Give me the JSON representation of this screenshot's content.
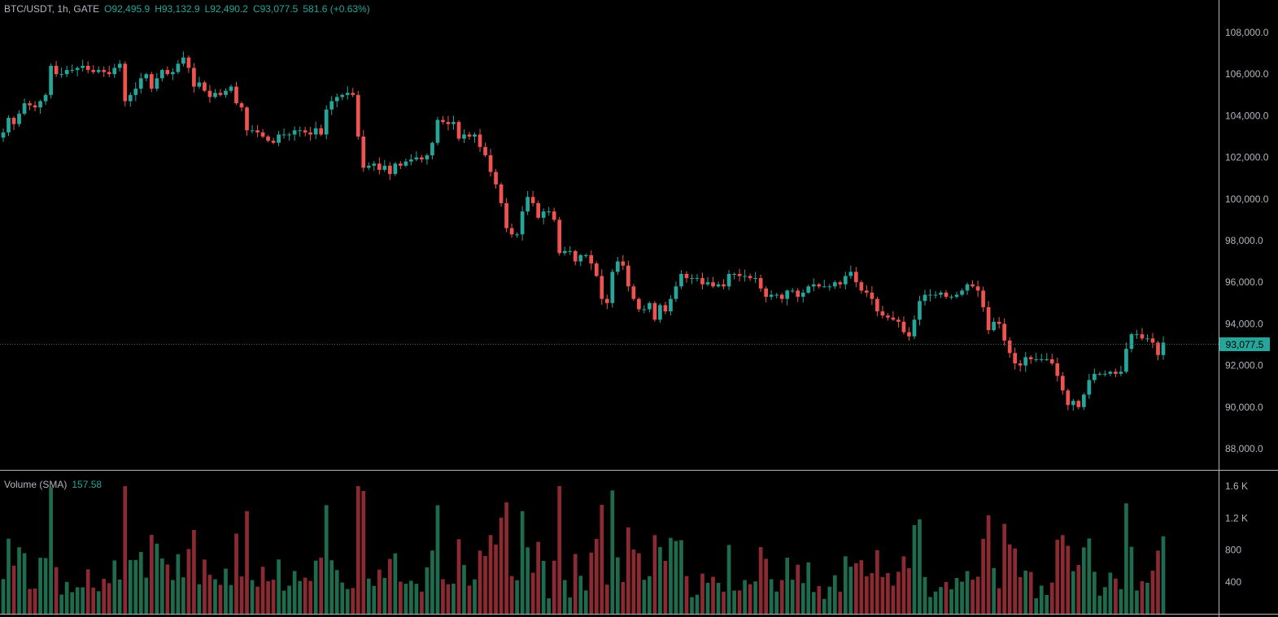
{
  "legend": {
    "symbol": "BTC/USDT, 1h, GATE",
    "open": "O92,495.9",
    "high": "H93,132.9",
    "low": "L92,490.2",
    "close": "C93,077.5",
    "change": "581.6 (+0.63%)"
  },
  "volume_legend": {
    "label": "Volume (SMA)",
    "value": "157.58"
  },
  "last_price_tag": "93,077.5",
  "colors": {
    "up": "#26a69a",
    "down": "#ef5350",
    "vol_up": "#1f6b4e",
    "vol_down": "#8c2a32",
    "axis_line": "#b2b5be"
  },
  "chart_data": [
    {
      "type": "candlestick",
      "title": "",
      "ylim": [
        87000,
        109500
      ],
      "y_ticks": [
        "108,000.0",
        "106,000.0",
        "104,000.0",
        "102,000.0",
        "100,000.0",
        "98,000.0",
        "96,000.0",
        "94,000.0",
        "92,000.0",
        "90,000.0",
        "88,000.0"
      ],
      "y_tick_values": [
        108000,
        106000,
        104000,
        102000,
        100000,
        98000,
        96000,
        94000,
        92000,
        90000,
        88000
      ],
      "last_price": 93077.5,
      "closes": [
        103200,
        103900,
        103600,
        104100,
        104600,
        104500,
        104400,
        104700,
        105000,
        106400,
        106000,
        106000,
        106200,
        106200,
        106300,
        106400,
        106200,
        106100,
        106200,
        106100,
        106000,
        106300,
        106500,
        104700,
        105000,
        105300,
        105800,
        106000,
        105300,
        105800,
        106200,
        106000,
        106100,
        106500,
        106800,
        106300,
        105400,
        105600,
        105200,
        104900,
        105100,
        105000,
        105200,
        105400,
        104600,
        104400,
        103300,
        103300,
        103200,
        103000,
        102800,
        102700,
        103100,
        103100,
        103100,
        103300,
        103300,
        103200,
        103100,
        103400,
        103100,
        104300,
        104700,
        104900,
        105000,
        105100,
        105000,
        103000,
        101500,
        101600,
        101700,
        101400,
        101600,
        101200,
        101700,
        101600,
        101800,
        101900,
        102000,
        101900,
        102100,
        102700,
        103800,
        103700,
        103600,
        103700,
        102900,
        103100,
        103000,
        103100,
        102500,
        102100,
        101300,
        100700,
        99800,
        98600,
        98300,
        98300,
        99400,
        100100,
        99800,
        99100,
        99400,
        99400,
        99000,
        97400,
        97500,
        97500,
        97000,
        97300,
        97300,
        96900,
        96300,
        95200,
        95000,
        96500,
        97000,
        96800,
        95800,
        95200,
        94700,
        94700,
        95000,
        94200,
        94900,
        94600,
        95200,
        95800,
        96400,
        96200,
        96200,
        96200,
        95900,
        96000,
        95800,
        95900,
        95800,
        96400,
        96400,
        96300,
        96300,
        96200,
        96200,
        95700,
        95300,
        95400,
        95400,
        95200,
        95600,
        95600,
        95300,
        95500,
        95800,
        95900,
        95800,
        95800,
        95800,
        96000,
        95900,
        96300,
        96500,
        96000,
        95600,
        95500,
        95200,
        94600,
        94400,
        94300,
        94200,
        94100,
        93600,
        93400,
        94200,
        95100,
        95400,
        95400,
        95400,
        95500,
        95300,
        95300,
        95400,
        95600,
        95900,
        95800,
        95600,
        94800,
        93700,
        94100,
        94000,
        93200,
        92600,
        92100,
        92000,
        92400,
        92300,
        92300,
        92300,
        92300,
        92100,
        91500,
        90800,
        90100,
        90300,
        90000,
        90600,
        91300,
        91600,
        91600,
        91600,
        91700,
        91600,
        91700,
        92800,
        93500,
        93500,
        93300,
        93300,
        93100,
        92500,
        93100
      ],
      "volume_ticks": [
        "1.6 K",
        "1.2 K",
        "800",
        "400"
      ],
      "volume_tick_values": [
        1600,
        1200,
        800,
        400
      ],
      "volume_ylim": [
        0,
        1680
      ]
    }
  ]
}
